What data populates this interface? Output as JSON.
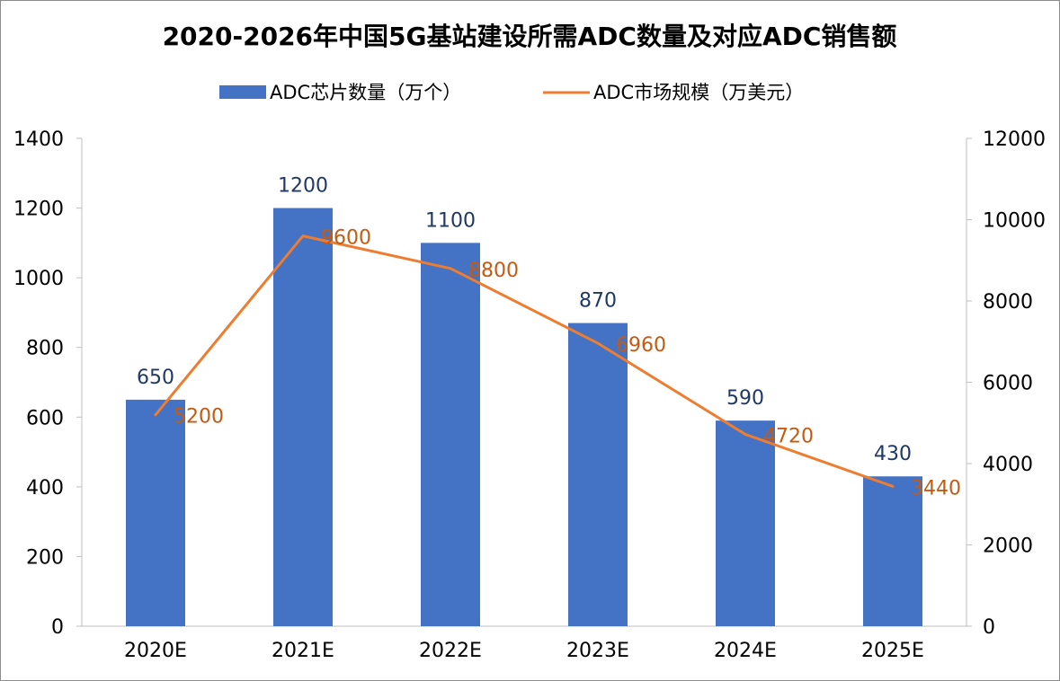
{
  "chart_data": {
    "type": "bar",
    "title": "2020-2026年中国5G基站建设所需ADC数量及对应ADC销售额",
    "categories": [
      "2020E",
      "2021E",
      "2022E",
      "2023E",
      "2024E",
      "2025E"
    ],
    "series": [
      {
        "name": "ADC芯片数量（万个）",
        "type": "bar",
        "axis": "left",
        "color": "#4472c4",
        "values": [
          650,
          1200,
          1100,
          870,
          590,
          430
        ],
        "labels": [
          "650",
          "1200",
          "1100",
          "870",
          "590",
          "430"
        ]
      },
      {
        "name": "ADC市场规模（万美元）",
        "type": "line",
        "axis": "right",
        "color": "#ed7d31",
        "values": [
          5200,
          9600,
          8800,
          6960,
          4720,
          3440
        ],
        "labels": [
          "5200",
          "9600",
          "8800",
          "6960",
          "4720",
          "3440"
        ]
      }
    ],
    "y_left": {
      "range": [
        0,
        1400
      ],
      "ticks": [
        0,
        200,
        400,
        600,
        800,
        1000,
        1200,
        1400
      ],
      "tick_labels": [
        "0",
        "200",
        "400",
        "600",
        "800",
        "1000",
        "1200",
        "1400"
      ]
    },
    "y_right": {
      "range": [
        0,
        12000
      ],
      "ticks": [
        0,
        2000,
        4000,
        6000,
        8000,
        10000,
        12000
      ],
      "tick_labels": [
        "0",
        "2000",
        "4000",
        "6000",
        "8000",
        "10000",
        "12000"
      ]
    },
    "grid": false,
    "legend_position": "top",
    "xlabel": "",
    "ylabel": ""
  }
}
